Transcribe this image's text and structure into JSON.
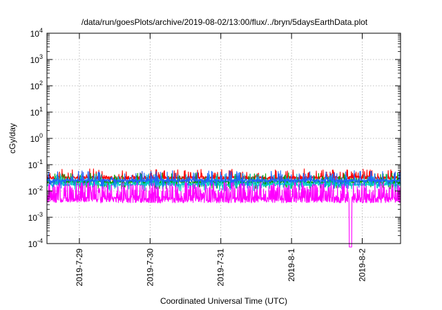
{
  "chart_data": {
    "type": "line",
    "title": "/data/run/goesPlots/archive/2019-08-02/13:00/flux/../bryn/5daysEarthData.plot",
    "xlabel": "Coordinated Universal Time (UTC)",
    "ylabel": "cGy/day",
    "y_scale": "log",
    "ylim": [
      0.0001,
      10000
    ],
    "y_ticks": [
      {
        "base": "10",
        "exp": "-4",
        "value": 0.0001
      },
      {
        "base": "10",
        "exp": "-3",
        "value": 0.001
      },
      {
        "base": "10",
        "exp": "-2",
        "value": 0.01
      },
      {
        "base": "10",
        "exp": "-1",
        "value": 0.1
      },
      {
        "base": "10",
        "exp": "0",
        "value": 1
      },
      {
        "base": "10",
        "exp": "1",
        "value": 10
      },
      {
        "base": "10",
        "exp": "2",
        "value": 100
      },
      {
        "base": "10",
        "exp": "3",
        "value": 1000
      },
      {
        "base": "10",
        "exp": "4",
        "value": 10000
      }
    ],
    "xlim": [
      "2019-07-28T13:00",
      "2019-08-02T13:00"
    ],
    "x_ticks": [
      "2019-7-29",
      "2019-7-30",
      "2019-7-31",
      "2019-8-1",
      "2019-8-2"
    ],
    "grid": true,
    "legend": "none",
    "series": [
      {
        "color": "#ff0000",
        "typical_value": 0.032,
        "range": [
          0.022,
          0.07
        ]
      },
      {
        "color": "#00a000",
        "typical_value": 0.022,
        "range": [
          0.012,
          0.05
        ]
      },
      {
        "color": "#00c8c8",
        "typical_value": 0.018,
        "range": [
          0.01,
          0.045
        ]
      },
      {
        "color": "#1e64ff",
        "typical_value": 0.025,
        "range": [
          0.012,
          0.06
        ]
      },
      {
        "color": "#ff00ff",
        "typical_value": 0.006,
        "range": [
          0.0035,
          0.025
        ],
        "dropout_to_below_axis": "2019-08-01T20:00"
      }
    ]
  }
}
